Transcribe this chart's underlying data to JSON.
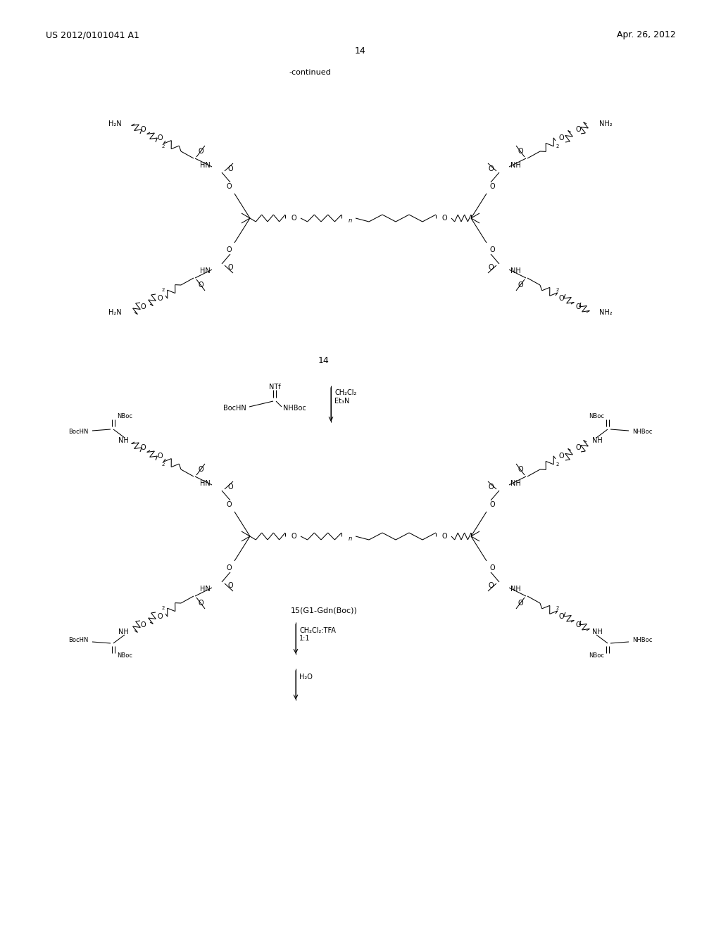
{
  "header_left": "US 2012/0101041 A1",
  "header_right": "Apr. 26, 2012",
  "page_number": "14",
  "continued_text": "-continued",
  "compound14_label": "14",
  "compound15_label": "15(G1-Gdn(Boc))",
  "bg_color": "#ffffff"
}
